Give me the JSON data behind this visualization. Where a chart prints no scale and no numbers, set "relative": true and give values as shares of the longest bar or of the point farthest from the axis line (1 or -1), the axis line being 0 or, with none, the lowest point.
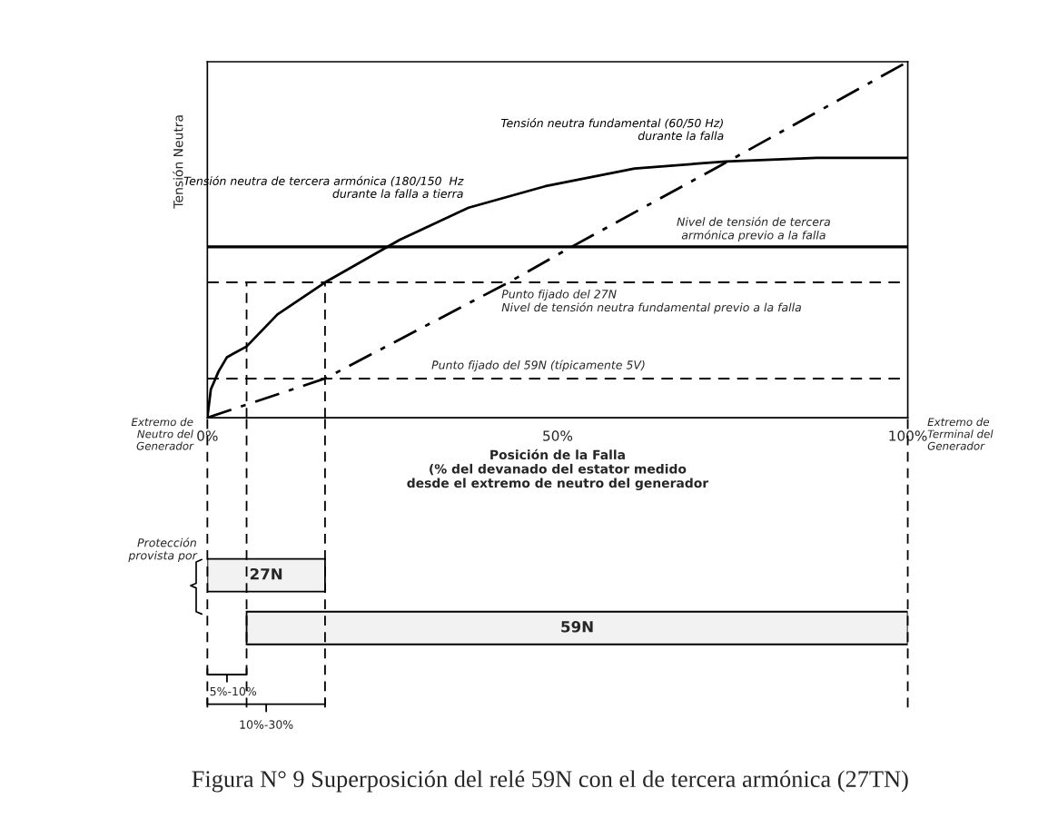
{
  "chart_data": [
    {
      "type": "line",
      "relative": true,
      "ylabel": "Tensión Neutra",
      "xlabel": "Posición de la Falla\n(% del devanado del estator medido\ndesde el extremo de neutro del generador",
      "xlim": [
        0,
        100
      ],
      "xticks": [
        {
          "value": 0,
          "label": "0%"
        },
        {
          "value": 50,
          "label": "50%"
        },
        {
          "value": 100,
          "label": "100%"
        }
      ],
      "grid": false,
      "legend": false,
      "series": [
        {
          "name": "Tensión neutra de tercera armónica (180/150  Hz\ndurante la falla a tierra",
          "color": "#000000",
          "line_style": "solid",
          "x": [
            0,
            0.5,
            1.6,
            2.8,
            5.6,
            10,
            16.8,
            27.5,
            37.3,
            48.2,
            61,
            74,
            87,
            100
          ],
          "values": [
            0,
            0.08,
            0.13,
            0.17,
            0.2,
            0.29,
            0.38,
            0.5,
            0.59,
            0.65,
            0.7,
            0.72,
            0.73,
            0.73
          ]
        },
        {
          "name": "Tensión neutra fundamental (60/50 Hz)\ndurante la falla",
          "color": "#000000",
          "line_style": "dashdot",
          "x": [
            0,
            16.8,
            43,
            52,
            73.4,
            100
          ],
          "values": [
            0,
            0.11,
            0.38,
            0.48,
            0.71,
            1
          ]
        }
      ],
      "ref_lines": [
        {
          "axis": "y",
          "value": 0.48,
          "label": "Nivel de tensión de tercera\narmónica previo a la falla",
          "line_style": "solid",
          "color": "#000000"
        },
        {
          "axis": "y",
          "value": 0.38,
          "label": "Punto fijado del 27N\nNivel de tensión neutra fundamental previo a la falla",
          "line_style": "dashed",
          "color": "#000000"
        },
        {
          "axis": "y",
          "value": 0.11,
          "label": "Punto fijado del 59N (típicamente 5V)",
          "line_style": "dashed",
          "color": "#000000"
        },
        {
          "axis": "x",
          "value": 5.6,
          "line_style": "dashed",
          "color": "#000000"
        },
        {
          "axis": "x",
          "value": 16.8,
          "line_style": "dashed",
          "color": "#000000"
        }
      ],
      "annotations": [
        "Extremo de\nNeutro del\nGenerador",
        "Extremo de\nTerminal del\nGenerador"
      ]
    },
    {
      "type": "bar",
      "orientation": "horizontal",
      "title": "Figura N° 9 Superposición del relé 59N con el de tercera armónica (27TN)",
      "categories": [
        "27N",
        "59N"
      ],
      "base": [
        0,
        5.6
      ],
      "values": [
        16.8,
        94.4
      ],
      "colors": [
        "#f2f2f2",
        "#f2f2f2"
      ],
      "xlim": [
        0,
        100
      ],
      "tick_labels": false,
      "ref_lines": [
        {
          "axis": "x",
          "value": 0,
          "line_style": "dashed",
          "color": "#000000"
        },
        {
          "axis": "x",
          "value": 5.6,
          "line_style": "dashed",
          "color": "#000000"
        },
        {
          "axis": "x",
          "value": 16.8,
          "line_style": "dashed",
          "color": "#000000"
        },
        {
          "axis": "x",
          "value": 100,
          "line_style": "dashed",
          "color": "#000000"
        }
      ],
      "annotations": [
        "Protección\nprovista por",
        "5%-10%",
        "10%-30%"
      ]
    }
  ]
}
